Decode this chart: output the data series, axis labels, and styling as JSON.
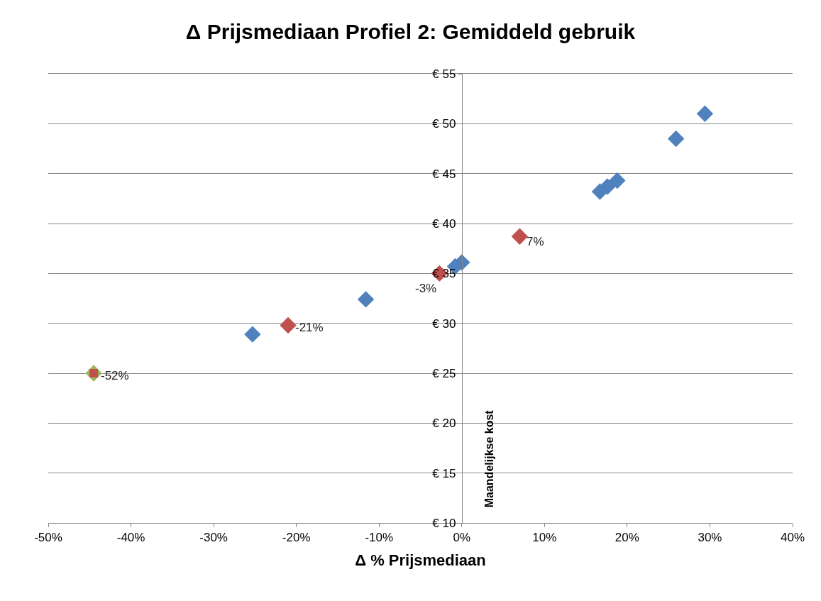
{
  "chart_data": {
    "type": "scatter",
    "title": "Δ Prijsmediaan Profiel 2: Gemiddeld gebruik",
    "xlabel": "Δ % Prijsmediaan",
    "ylabel": "Maandelijkse kost",
    "series": [
      {
        "color": "#4f81bd",
        "marker": "diamond",
        "x": [
          29.4,
          25.9,
          18.8,
          17.6,
          16.7,
          0.0,
          -0.8,
          -11.6,
          -25.3
        ],
        "values": [
          51.0,
          48.5,
          44.3,
          43.7,
          43.2,
          36.1,
          35.7,
          32.4,
          28.9
        ]
      },
      {
        "color": "#9bbb59",
        "marker": "diamond",
        "x": [
          -44.5
        ],
        "values": [
          25.0
        ]
      },
      {
        "color": "#c0504d",
        "marker": "diamond",
        "x": [
          7.0,
          -2.7,
          -21.0
        ],
        "values": [
          38.7,
          35.0,
          29.8
        ]
      },
      {
        "color": "#c0504d",
        "marker": "square",
        "x": [
          -44.5
        ],
        "values": [
          25.0
        ]
      }
    ],
    "annotations": [
      {
        "text": "7%",
        "x": 7.0,
        "y": 38.7
      },
      {
        "text": "-3%",
        "x": -2.7,
        "y": 35.0
      },
      {
        "text": "-21%",
        "x": -21.0,
        "y": 29.8
      },
      {
        "text": "-52%",
        "x": -44.5,
        "y": 25.0
      }
    ],
    "xlim": [
      -50,
      40
    ],
    "xticks": [
      {
        "value": -50,
        "label": "-50%"
      },
      {
        "value": -40,
        "label": "-40%"
      },
      {
        "value": -30,
        "label": "-30%"
      },
      {
        "value": -20,
        "label": "-20%"
      },
      {
        "value": -10,
        "label": "-10%"
      },
      {
        "value": 0,
        "label": "0%"
      },
      {
        "value": 10,
        "label": "10%"
      },
      {
        "value": 20,
        "label": "20%"
      },
      {
        "value": 30,
        "label": "30%"
      },
      {
        "value": 40,
        "label": "40%"
      }
    ],
    "ylim": [
      10,
      55
    ],
    "yticks": [
      {
        "value": 10,
        "label": "€ 10"
      },
      {
        "value": 15,
        "label": "€ 15"
      },
      {
        "value": 20,
        "label": "€ 20"
      },
      {
        "value": 25,
        "label": "€ 25"
      },
      {
        "value": 30,
        "label": "€ 30"
      },
      {
        "value": 35,
        "label": "€ 35"
      },
      {
        "value": 40,
        "label": "€ 40"
      },
      {
        "value": 45,
        "label": "€ 45"
      },
      {
        "value": 50,
        "label": "€ 50"
      },
      {
        "value": 55,
        "label": "€ 55"
      }
    ],
    "grid": "y"
  }
}
